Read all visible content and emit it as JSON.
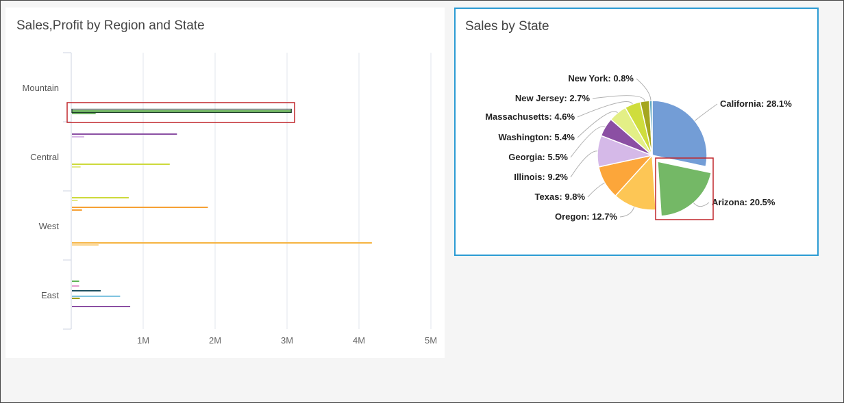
{
  "bar_panel": {
    "title": "Sales,Profit by Region and State"
  },
  "pie_panel": {
    "title": "Sales by State"
  },
  "chart_data": [
    {
      "type": "bar",
      "orientation": "horizontal",
      "title": "Sales,Profit by Region and State",
      "categories": [
        "Mountain",
        "Central",
        "West",
        "East"
      ],
      "x_ticks": [
        "1M",
        "2M",
        "3M",
        "4M",
        "5M"
      ],
      "xlim": [
        0,
        5000000
      ],
      "grid": true,
      "highlighted_category": "Mountain",
      "bars": [
        {
          "category": "Mountain",
          "measure": "Sales",
          "value": 3050000,
          "color": "#74b866"
        },
        {
          "category": "Mountain",
          "measure": "Profit",
          "value": 330000,
          "color": "#74b866"
        },
        {
          "category": "Central",
          "measure": "Sales",
          "value": 1460000,
          "color": "#8b4fa3"
        },
        {
          "category": "Central",
          "measure": "Profit",
          "value": 170000,
          "color": "#d7b6e6"
        },
        {
          "category": "Central",
          "measure": "Sales",
          "value": 1360000,
          "color": "#cdd93b"
        },
        {
          "category": "Central",
          "measure": "Profit",
          "value": 120000,
          "color": "#e3e986"
        },
        {
          "category": "West",
          "measure": "Sales",
          "value": 790000,
          "color": "#cdd93b"
        },
        {
          "category": "West",
          "measure": "Profit",
          "value": 80000,
          "color": "#e3e986"
        },
        {
          "category": "West",
          "measure": "Sales",
          "value": 1890000,
          "color": "#f6a033"
        },
        {
          "category": "West",
          "measure": "Profit",
          "value": 140000,
          "color": "#f6a033"
        },
        {
          "category": "West",
          "measure": "Sales",
          "value": 4170000,
          "color": "#f6b340"
        },
        {
          "category": "West",
          "measure": "Profit",
          "value": 370000,
          "color": "#fbd48a"
        },
        {
          "category": "East",
          "measure": "Sales",
          "value": 100000,
          "color": "#5fb356"
        },
        {
          "category": "East",
          "measure": "Profit",
          "value": 100000,
          "color": "#e69bd1"
        },
        {
          "category": "East",
          "measure": "Sales",
          "value": 400000,
          "color": "#1e4f5f"
        },
        {
          "category": "East",
          "measure": "Profit",
          "value": 670000,
          "color": "#7fc3e0"
        },
        {
          "category": "East",
          "measure": "Sales",
          "value": 110000,
          "color": "#9a9a16"
        },
        {
          "category": "East",
          "measure": "Sales",
          "value": 810000,
          "color": "#8b4fa3"
        }
      ]
    },
    {
      "type": "pie",
      "title": "Sales by State",
      "exploded_slice": "Arizona",
      "slices": [
        {
          "label": "California",
          "value": 28.1,
          "text": "California: 28.1%",
          "color": "#739dd6"
        },
        {
          "label": "Arizona",
          "value": 20.5,
          "text": "Arizona: 20.5%",
          "color": "#74b866"
        },
        {
          "label": "Oregon",
          "value": 12.7,
          "text": "Oregon: 12.7%",
          "color": "#fdc655"
        },
        {
          "label": "Texas",
          "value": 9.8,
          "text": "Texas: 9.8%",
          "color": "#fca63a"
        },
        {
          "label": "Illinois",
          "value": 9.2,
          "text": "Illinois: 9.2%",
          "color": "#d5b9e8"
        },
        {
          "label": "Georgia",
          "value": 5.5,
          "text": "Georgia: 5.5%",
          "color": "#8b4fa3"
        },
        {
          "label": "Washington",
          "value": 5.4,
          "text": "Washington: 5.4%",
          "color": "#e3ef86"
        },
        {
          "label": "Massachusetts",
          "value": 4.6,
          "text": "Massachusetts: 4.6%",
          "color": "#cfdd3d"
        },
        {
          "label": "New Jersey",
          "value": 2.7,
          "text": "New Jersey: 2.7%",
          "color": "#a5a61f"
        },
        {
          "label": "New York",
          "value": 0.8,
          "text": "New York: 0.8%",
          "color": "#5fa8c2"
        }
      ]
    }
  ]
}
